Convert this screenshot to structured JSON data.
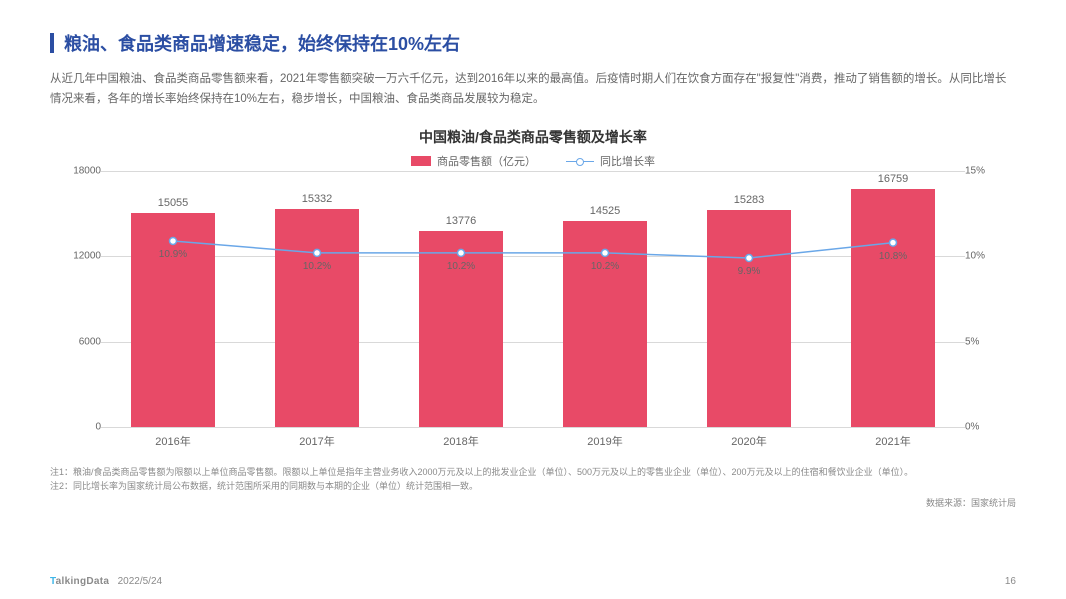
{
  "colors": {
    "accent": "#2b4ea3",
    "title": "#2b4ea3",
    "desc": "#666666",
    "chart_title": "#333333",
    "bar": "#e84a67",
    "line": "#6aa7e8",
    "grid": "#d9d9d9",
    "axis_text": "#666666",
    "note": "#8a8a8a",
    "source": "#8a8a8a",
    "footer": "#8a8a8a",
    "brand_accent": "#3fb6e8"
  },
  "header": {
    "title": "粮油、食品类商品增速稳定，始终保持在10%左右",
    "desc": "从近几年中国粮油、食品类商品零售额来看，2021年零售额突破一万六千亿元，达到2016年以来的最高值。后疫情时期人们在饮食方面存在\"报复性\"消费，推动了销售额的增长。从同比增长情况来看，各年的增长率始终保持在10%左右，稳步增长，中国粮油、食品类商品发展较为稳定。"
  },
  "chart": {
    "type": "bar+line",
    "title": "中国粮油/食品类商品零售额及增长率",
    "legend": {
      "bar": "商品零售额（亿元）",
      "line": "同比增长率"
    },
    "categories": [
      "2016年",
      "2017年",
      "2018年",
      "2019年",
      "2020年",
      "2021年"
    ],
    "bar_values": [
      15055,
      15332,
      13776,
      14525,
      15283,
      16759
    ],
    "line_values_pct": [
      10.9,
      10.2,
      10.2,
      10.2,
      9.9,
      10.8
    ],
    "y_left": {
      "min": 0,
      "max": 18000,
      "step": 6000
    },
    "y_right": {
      "min": 0,
      "max": 15,
      "step": 5,
      "suffix": "%"
    },
    "bar_width_ratio": 0.58,
    "label_fontsize": 11,
    "axis_fontsize": 10
  },
  "notes": {
    "n1": "注1：粮油/食品类商品零售额为限额以上单位商品零售额。限额以上单位是指年主营业务收入2000万元及以上的批发业企业（单位）、500万元及以上的零售业企业（单位）、200万元及以上的住宿和餐饮业企业（单位）。",
    "n2": "注2：同比增长率为国家统计局公布数据，统计范围所采用的同期数与本期的企业（单位）统计范围相一致。",
    "source": "数据来源：国家统计局"
  },
  "footer": {
    "brand_prefix": "T",
    "brand_rest": "alkingData",
    "date": "2022/5/24",
    "page": "16"
  }
}
